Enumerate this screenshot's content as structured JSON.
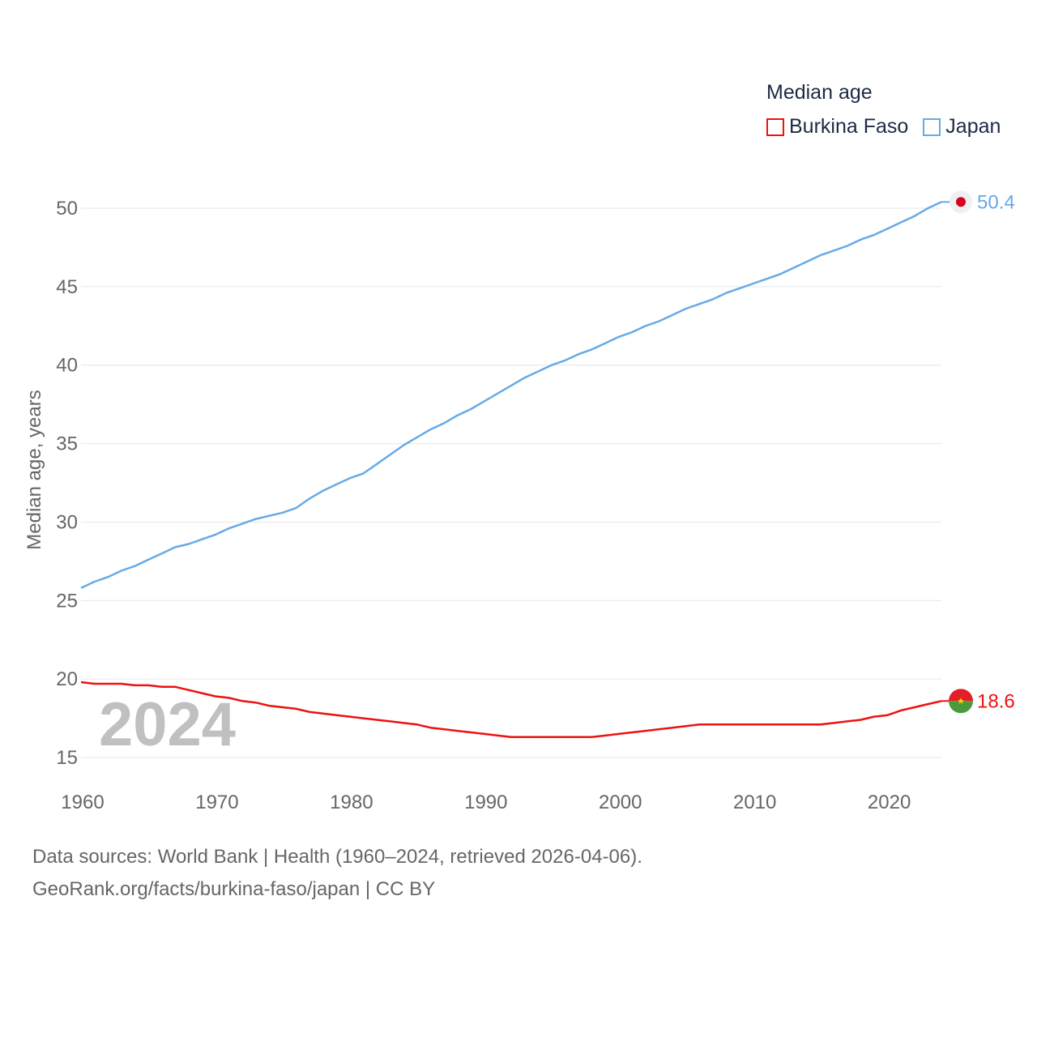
{
  "legend": {
    "title": "Median age",
    "items": [
      {
        "label": "Burkina Faso",
        "color": "#ee1111"
      },
      {
        "label": "Japan",
        "color": "#66aae6"
      }
    ]
  },
  "year_label": "2024",
  "source": {
    "line1": "Data sources: World Bank | Health (1960–2024, retrieved 2026-04-06).",
    "line2": "GeoRank.org/facts/burkina-faso/japan | CC BY"
  },
  "chart_data": {
    "type": "line",
    "title": "Median age",
    "xlabel": "",
    "ylabel": "Median age, years",
    "xlim": [
      1960,
      2024
    ],
    "ylim": [
      15,
      50
    ],
    "x_ticks": [
      1960,
      1970,
      1980,
      1990,
      2000,
      2010,
      2020
    ],
    "y_ticks": [
      15,
      20,
      25,
      30,
      35,
      40,
      45,
      50
    ],
    "grid": true,
    "legend_position": "top-right",
    "x": [
      1960,
      1961,
      1962,
      1963,
      1964,
      1965,
      1966,
      1967,
      1968,
      1969,
      1970,
      1971,
      1972,
      1973,
      1974,
      1975,
      1976,
      1977,
      1978,
      1979,
      1980,
      1981,
      1982,
      1983,
      1984,
      1985,
      1986,
      1987,
      1988,
      1989,
      1990,
      1991,
      1992,
      1993,
      1994,
      1995,
      1996,
      1997,
      1998,
      1999,
      2000,
      2001,
      2002,
      2003,
      2004,
      2005,
      2006,
      2007,
      2008,
      2009,
      2010,
      2011,
      2012,
      2013,
      2014,
      2015,
      2016,
      2017,
      2018,
      2019,
      2020,
      2021,
      2022,
      2023,
      2024
    ],
    "series": [
      {
        "name": "Burkina Faso",
        "color": "#ee1111",
        "end_label": "18.6",
        "values": [
          19.8,
          19.7,
          19.7,
          19.7,
          19.6,
          19.6,
          19.5,
          19.5,
          19.3,
          19.1,
          18.9,
          18.8,
          18.6,
          18.5,
          18.3,
          18.2,
          18.1,
          17.9,
          17.8,
          17.7,
          17.6,
          17.5,
          17.4,
          17.3,
          17.2,
          17.1,
          16.9,
          16.8,
          16.7,
          16.6,
          16.5,
          16.4,
          16.3,
          16.3,
          16.3,
          16.3,
          16.3,
          16.3,
          16.3,
          16.4,
          16.5,
          16.6,
          16.7,
          16.8,
          16.9,
          17.0,
          17.1,
          17.1,
          17.1,
          17.1,
          17.1,
          17.1,
          17.1,
          17.1,
          17.1,
          17.1,
          17.2,
          17.3,
          17.4,
          17.6,
          17.7,
          18.0,
          18.2,
          18.4,
          18.6
        ]
      },
      {
        "name": "Japan",
        "color": "#66aae6",
        "end_label": "50.4",
        "values": [
          25.8,
          26.2,
          26.5,
          26.9,
          27.2,
          27.6,
          28.0,
          28.4,
          28.6,
          28.9,
          29.2,
          29.6,
          29.9,
          30.2,
          30.4,
          30.6,
          30.9,
          31.5,
          32.0,
          32.4,
          32.8,
          33.1,
          33.7,
          34.3,
          34.9,
          35.4,
          35.9,
          36.3,
          36.8,
          37.2,
          37.7,
          38.2,
          38.7,
          39.2,
          39.6,
          40.0,
          40.3,
          40.7,
          41.0,
          41.4,
          41.8,
          42.1,
          42.5,
          42.8,
          43.2,
          43.6,
          43.9,
          44.2,
          44.6,
          44.9,
          45.2,
          45.5,
          45.8,
          46.2,
          46.6,
          47.0,
          47.3,
          47.6,
          48.0,
          48.3,
          48.7,
          49.1,
          49.5,
          50.0,
          50.4
        ]
      }
    ]
  }
}
